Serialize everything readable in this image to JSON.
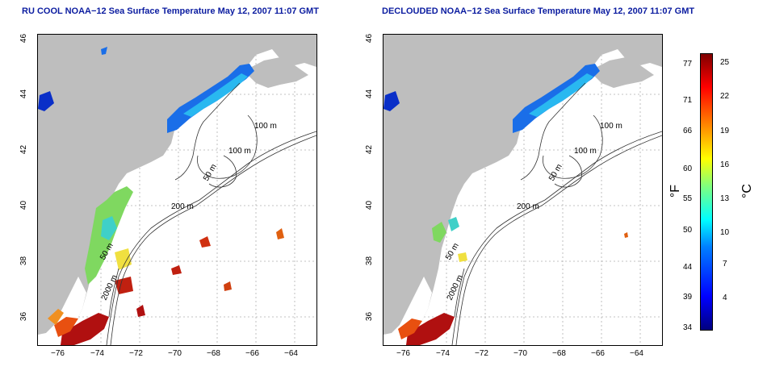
{
  "maps": [
    {
      "title": "RU COOL NOAA−12 Sea Surface Temperature May 12, 2007 11:07 GMT"
    },
    {
      "title": "DECLOUDED NOAA−12 Sea Surface Temperature May 12, 2007 11:07 GMT"
    }
  ],
  "axes": {
    "lon_ticks": [
      "−76",
      "−74",
      "−72",
      "−70",
      "−68",
      "−66",
      "−64"
    ],
    "lat_ticks": [
      "46",
      "44",
      "42",
      "40",
      "38",
      "36"
    ]
  },
  "contours": {
    "label_100_a": "100 m",
    "label_100_b": "100 m",
    "label_50": "50 m",
    "label_200": "200 m",
    "label_50_b": "50 m",
    "label_2000": "2000 m"
  },
  "colorbar": {
    "fahrenheit_label": "°F",
    "celsius_label": "°C",
    "fahrenheit_ticks": [
      "77",
      "71",
      "66",
      "60",
      "55",
      "50",
      "44",
      "39",
      "34"
    ],
    "celsius_ticks": [
      "25",
      "22",
      "19",
      "16",
      "13",
      "10",
      "7",
      "4"
    ]
  },
  "colors": {
    "land": "#bebebe",
    "title": "#0b1ca0",
    "grid": "#b0b0b0"
  }
}
